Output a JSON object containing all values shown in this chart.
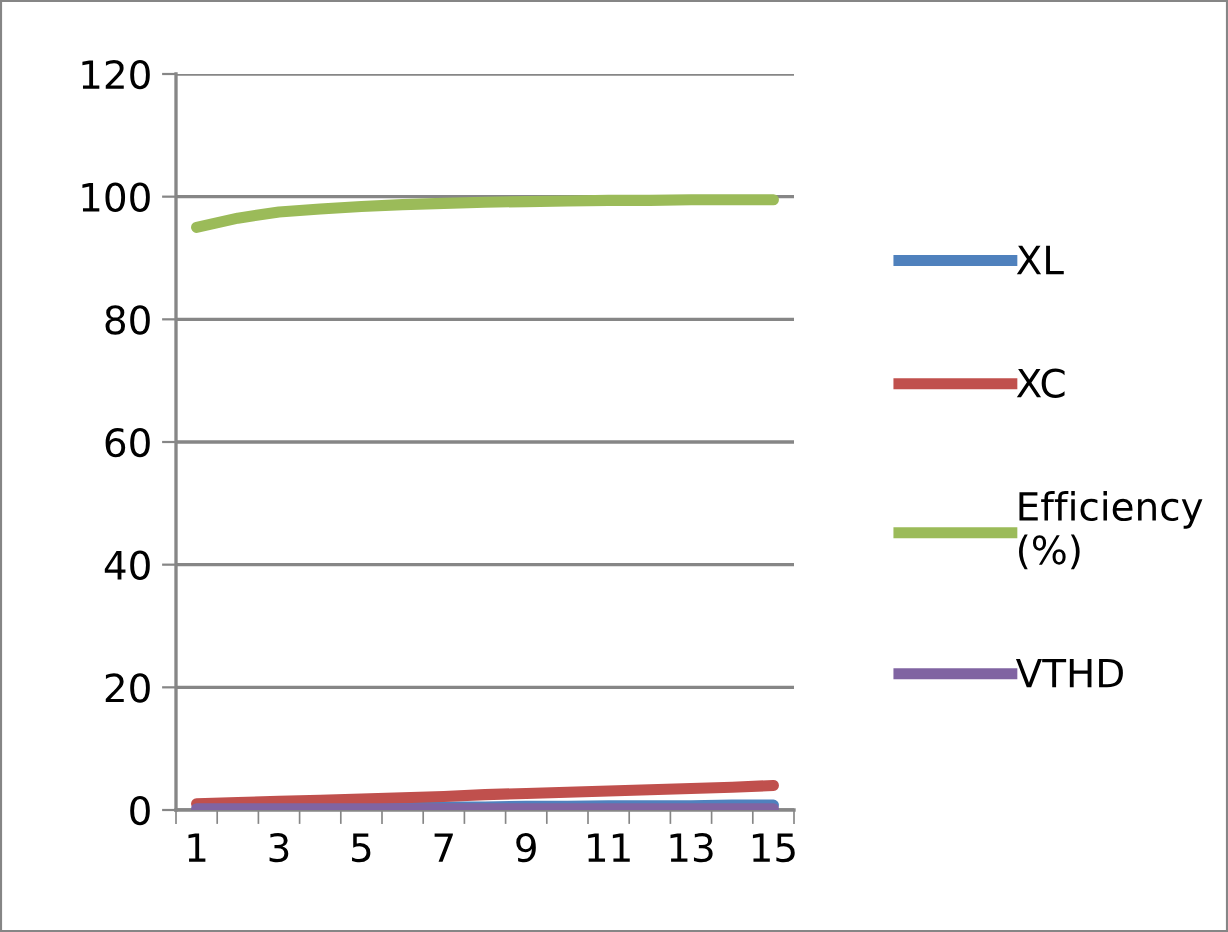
{
  "chart_data": {
    "type": "line",
    "categories": [
      "1",
      null,
      "3",
      null,
      "5",
      null,
      "7",
      null,
      "9",
      null,
      "11",
      null,
      "13",
      null,
      "15"
    ],
    "series": [
      {
        "name": "XL",
        "color": "#4f81bd",
        "values": [
          null,
          null,
          null,
          null,
          0.4,
          0.5,
          0.5,
          0.5,
          0.6,
          0.6,
          0.7,
          0.7,
          0.7,
          0.8,
          0.8
        ]
      },
      {
        "name": "XC",
        "color": "#c0504d",
        "values": [
          1.0,
          1.2,
          1.4,
          1.6,
          1.8,
          2.0,
          2.2,
          2.5,
          2.7,
          2.9,
          3.1,
          3.3,
          3.5,
          3.7,
          4.0
        ]
      },
      {
        "name": "Efficiency (%)",
        "color": "#9bbb59",
        "values": [
          95.0,
          96.5,
          97.5,
          98.0,
          98.4,
          98.7,
          98.9,
          99.1,
          99.2,
          99.3,
          99.4,
          99.4,
          99.5,
          99.5,
          99.5
        ]
      },
      {
        "name": "VTHD",
        "color": "#8064a2",
        "values": [
          0.2,
          0.2,
          0.2,
          0.2,
          0.2,
          0.2,
          0.2,
          0.2,
          0.2,
          0.2,
          0.2,
          0.2,
          0.2,
          0.2,
          0.2
        ]
      }
    ],
    "ylim": [
      0,
      120
    ],
    "yticks": [
      0,
      20,
      40,
      60,
      80,
      100,
      120
    ],
    "grid": "y",
    "legend": "right",
    "marker": "none",
    "line_style": "solid"
  }
}
